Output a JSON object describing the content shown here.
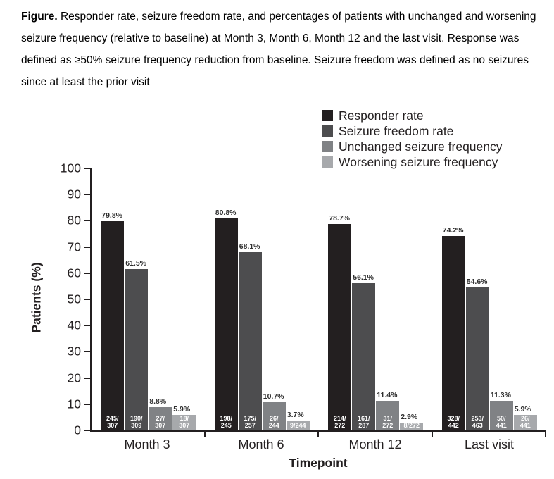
{
  "caption": {
    "label": "Figure.",
    "text": " Responder rate, seizure freedom rate, and percentages of patients with unchanged and worsening seizure frequency (relative to baseline) at Month 3, Month 6, Month 12 and the last visit. Response was defined as ≥50% seizure frequency reduction from baseline. Seizure freedom was defined as no seizures since at least the prior visit"
  },
  "chart_data": {
    "type": "bar",
    "title": "",
    "xlabel": "Timepoint",
    "ylabel": "Patients (%)",
    "ylim": [
      0,
      100
    ],
    "ytick_step": 10,
    "grid": false,
    "legend_position": "top-right",
    "categories": [
      "Month 3",
      "Month 6",
      "Month 12",
      "Last visit"
    ],
    "series": [
      {
        "name": "Responder rate",
        "color": "#231f20",
        "values": [
          79.8,
          80.8,
          78.7,
          74.2
        ],
        "labels": [
          "79.8%",
          "80.8%",
          "78.7%",
          "74.2%"
        ],
        "fractions": [
          "245/\n307",
          "198/\n245",
          "214/\n272",
          "328/\n442"
        ]
      },
      {
        "name": "Seizure freedom rate",
        "color": "#4d4d4f",
        "values": [
          61.5,
          68.1,
          56.1,
          54.6
        ],
        "labels": [
          "61.5%",
          "68.1%",
          "56.1%",
          "54.6%"
        ],
        "fractions": [
          "190/\n309",
          "175/\n257",
          "161/\n287",
          "253/\n463"
        ]
      },
      {
        "name": "Unchanged seizure frequency",
        "color": "#808285",
        "values": [
          8.8,
          10.7,
          11.4,
          11.3
        ],
        "labels": [
          "8.8%",
          "10.7%",
          "11.4%",
          "11.3%"
        ],
        "fractions": [
          "27/\n307",
          "26/\n244",
          "31/\n272",
          "50/\n441"
        ]
      },
      {
        "name": "Worsening seizure frequency",
        "color": "#a7a9ac",
        "values": [
          5.9,
          3.7,
          2.9,
          5.9
        ],
        "labels": [
          "5.9%",
          "3.7%",
          "2.9%",
          "5.9%"
        ],
        "fractions": [
          "18/\n307",
          "9/244",
          "8/272",
          "26/\n441"
        ]
      }
    ]
  }
}
